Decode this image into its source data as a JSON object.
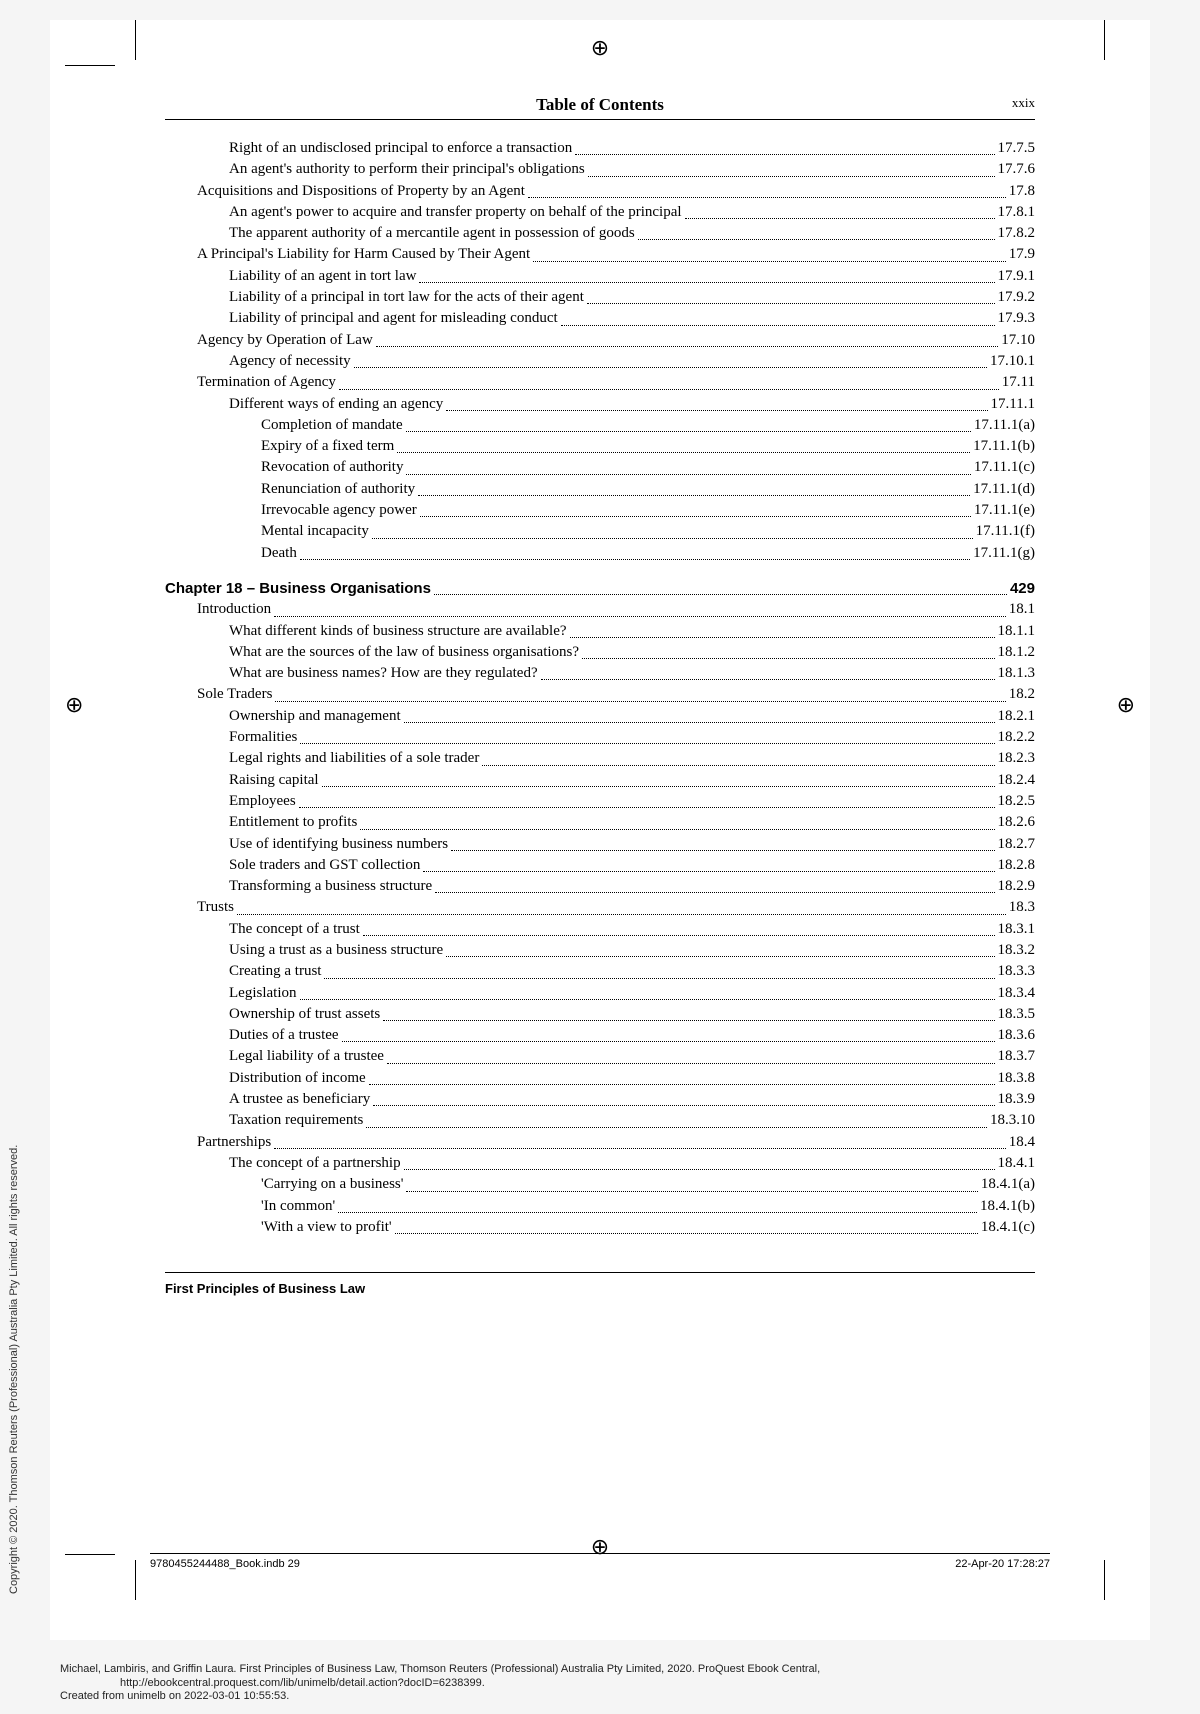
{
  "header": {
    "title": "Table of Contents",
    "pagenum": "xxix"
  },
  "toc": [
    {
      "lvl": 2,
      "label": "Right of an undisclosed principal to enforce a transaction",
      "ref": "17.7.5"
    },
    {
      "lvl": 2,
      "label": "An agent's authority to perform their principal's obligations",
      "ref": "17.7.6"
    },
    {
      "lvl": 1,
      "label": "Acquisitions and Dispositions of Property by an Agent",
      "ref": "17.8"
    },
    {
      "lvl": 2,
      "label": "An agent's power to acquire and transfer property on behalf of the principal",
      "ref": "17.8.1"
    },
    {
      "lvl": 2,
      "label": "The apparent authority of a mercantile agent in possession of goods",
      "ref": "17.8.2"
    },
    {
      "lvl": 1,
      "label": "A Principal's Liability for Harm Caused by Their Agent",
      "ref": "17.9"
    },
    {
      "lvl": 2,
      "label": "Liability of an agent in tort law",
      "ref": "17.9.1"
    },
    {
      "lvl": 2,
      "label": "Liability of a principal in tort law for the acts of their agent",
      "ref": "17.9.2"
    },
    {
      "lvl": 2,
      "label": "Liability of principal and agent for misleading conduct",
      "ref": "17.9.3"
    },
    {
      "lvl": 1,
      "label": "Agency by Operation of Law",
      "ref": "17.10"
    },
    {
      "lvl": 2,
      "label": "Agency of necessity",
      "ref": "17.10.1"
    },
    {
      "lvl": 1,
      "label": "Termination of Agency",
      "ref": "17.11"
    },
    {
      "lvl": 2,
      "label": "Different ways of ending an agency",
      "ref": "17.11.1"
    },
    {
      "lvl": 3,
      "label": "Completion of mandate",
      "ref": "17.11.1(a)"
    },
    {
      "lvl": 3,
      "label": "Expiry of a fixed term",
      "ref": "17.11.1(b)"
    },
    {
      "lvl": 3,
      "label": "Revocation of authority",
      "ref": "17.11.1(c)"
    },
    {
      "lvl": 3,
      "label": "Renunciation of authority",
      "ref": "17.11.1(d)"
    },
    {
      "lvl": 3,
      "label": "Irrevocable agency power",
      "ref": "17.11.1(e)"
    },
    {
      "lvl": 3,
      "label": "Mental incapacity",
      "ref": "17.11.1(f)"
    },
    {
      "lvl": 3,
      "label": "Death",
      "ref": "17.11.1(g)"
    },
    {
      "lvl": "spacer"
    },
    {
      "lvl": 0,
      "chapter": true,
      "label": "Chapter 18 – Business Organisations",
      "ref": "429"
    },
    {
      "lvl": 1,
      "label": "Introduction",
      "ref": "18.1"
    },
    {
      "lvl": 2,
      "label": "What different kinds of business structure are available?",
      "ref": "18.1.1"
    },
    {
      "lvl": 2,
      "label": "What are the sources of the law of business organisations?",
      "ref": "18.1.2"
    },
    {
      "lvl": 2,
      "label": "What are business names? How are they regulated?",
      "ref": "18.1.3"
    },
    {
      "lvl": 1,
      "label": "Sole Traders",
      "ref": "18.2"
    },
    {
      "lvl": 2,
      "label": "Ownership and management",
      "ref": "18.2.1"
    },
    {
      "lvl": 2,
      "label": "Formalities",
      "ref": "18.2.2"
    },
    {
      "lvl": 2,
      "label": "Legal rights and liabilities of a sole trader",
      "ref": "18.2.3"
    },
    {
      "lvl": 2,
      "label": "Raising capital",
      "ref": "18.2.4"
    },
    {
      "lvl": 2,
      "label": "Employees",
      "ref": "18.2.5"
    },
    {
      "lvl": 2,
      "label": "Entitlement to profits",
      "ref": "18.2.6"
    },
    {
      "lvl": 2,
      "label": "Use of identifying business numbers",
      "ref": "18.2.7"
    },
    {
      "lvl": 2,
      "label": "Sole traders and GST collection",
      "ref": "18.2.8"
    },
    {
      "lvl": 2,
      "label": "Transforming a business structure",
      "ref": "18.2.9"
    },
    {
      "lvl": 1,
      "label": "Trusts",
      "ref": "18.3"
    },
    {
      "lvl": 2,
      "label": "The concept of a trust",
      "ref": "18.3.1"
    },
    {
      "lvl": 2,
      "label": "Using a trust as a business structure",
      "ref": "18.3.2"
    },
    {
      "lvl": 2,
      "label": "Creating a trust",
      "ref": "18.3.3"
    },
    {
      "lvl": 2,
      "label": "Legislation",
      "ref": "18.3.4"
    },
    {
      "lvl": 2,
      "label": "Ownership of trust assets",
      "ref": "18.3.5"
    },
    {
      "lvl": 2,
      "label": "Duties of a trustee",
      "ref": "18.3.6"
    },
    {
      "lvl": 2,
      "label": "Legal liability of a trustee",
      "ref": "18.3.7"
    },
    {
      "lvl": 2,
      "label": "Distribution of income",
      "ref": "18.3.8"
    },
    {
      "lvl": 2,
      "label": "A trustee as beneficiary",
      "ref": "18.3.9"
    },
    {
      "lvl": 2,
      "label": "Taxation requirements",
      "ref": "18.3.10"
    },
    {
      "lvl": 1,
      "label": "Partnerships",
      "ref": "18.4"
    },
    {
      "lvl": 2,
      "label": "The concept of a partnership",
      "ref": "18.4.1"
    },
    {
      "lvl": 3,
      "label": "'Carrying on a business'",
      "ref": "18.4.1(a)"
    },
    {
      "lvl": 3,
      "label": "'In common'",
      "ref": "18.4.1(b)"
    },
    {
      "lvl": 3,
      "label": "'With a view to profit'",
      "ref": "18.4.1(c)"
    }
  ],
  "footer": {
    "book_title": "First Principles of Business Law",
    "print_left": "9780455244488_Book.indb   29",
    "print_right": "22-Apr-20   17:28:27"
  },
  "vertical_copy": "Copyright © 2020. Thomson Reuters (Professional) Australia Pty Limited. All rights reserved.",
  "bottom_cite_1": "Michael, Lambiris, and Griffin Laura. First Principles of Business Law, Thomson Reuters (Professional) Australia Pty Limited, 2020. ProQuest Ebook Central,",
  "bottom_cite_2": "http://ebookcentral.proquest.com/lib/unimelb/detail.action?docID=6238399.",
  "bottom_cite_3": "Created from unimelb on 2022-03-01 10:55:53."
}
